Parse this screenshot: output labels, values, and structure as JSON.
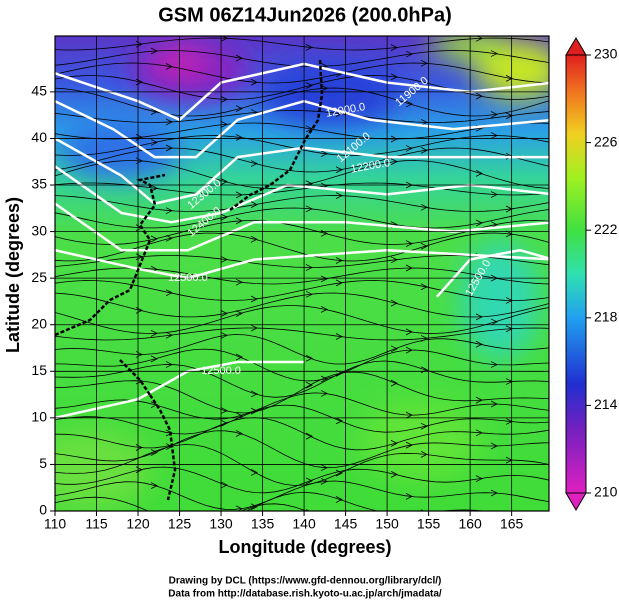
{
  "chart_data": {
    "type": "map",
    "title": "GSM 06Z14Jun2026 (200.0hPa)",
    "x_label": "Longitude (degrees)",
    "y_label": "Latitude  (degrees)",
    "xlim": [
      110,
      169.5
    ],
    "ylim": [
      0,
      51
    ],
    "xticks": [
      110,
      115,
      120,
      125,
      130,
      135,
      140,
      145,
      150,
      155,
      160,
      165
    ],
    "yticks": [
      0,
      5,
      10,
      15,
      20,
      25,
      30,
      35,
      40,
      45
    ],
    "grid": true,
    "colorbar": {
      "lim": [
        210,
        230
      ],
      "ticks": [
        210,
        214,
        218,
        222,
        226,
        230
      ]
    },
    "contour_labels": [
      "11900.0",
      "12000.0",
      "12100.0",
      "12200.0",
      "12300.0",
      "12400.0",
      "12500.0",
      "12500.0",
      "12500.0"
    ]
  },
  "footer": [
    "Drawing by DCL (https://www.gfd-dennou.org/library/dcl/)",
    "Data from http://database.rish.kyoto-u.ac.jp/arch/jmadata/"
  ]
}
